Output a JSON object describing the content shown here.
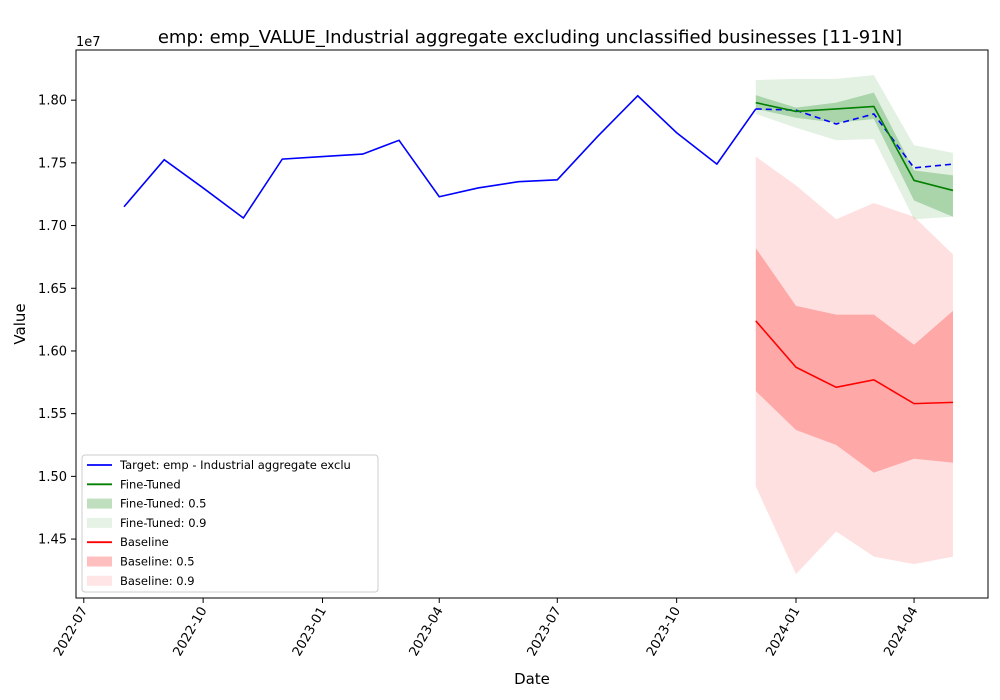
{
  "chart_data": {
    "type": "line",
    "title": "emp: emp_VALUE_Industrial aggregate excluding unclassified businesses [11-91N]",
    "xlabel": "Date",
    "ylabel": "Value",
    "y_offset_label": "1e7",
    "xlim": [
      "2022-06-25",
      "2024-05-28"
    ],
    "ylim": [
      14030000,
      18400000
    ],
    "x_ticks": [
      "2022-07-01",
      "2022-10-01",
      "2023-01-01",
      "2023-04-01",
      "2023-07-01",
      "2023-10-01",
      "2024-01-01",
      "2024-04-01"
    ],
    "x_tick_labels": [
      "2022-07",
      "2022-10",
      "2023-01",
      "2023-04",
      "2023-07",
      "2023-10",
      "2024-01",
      "2024-04"
    ],
    "y_ticks": [
      14500000,
      15000000,
      15500000,
      16000000,
      16500000,
      17000000,
      17500000,
      18000000
    ],
    "y_tick_labels": [
      "1.45",
      "1.50",
      "1.55",
      "1.60",
      "1.65",
      "1.70",
      "1.75",
      "1.80"
    ],
    "grid": false,
    "legend_position": "lower-left",
    "colors": {
      "target": "#0000ff",
      "fine_tuned": "#008000",
      "fine_tuned_band": "#008000",
      "baseline": "#ff0000",
      "baseline_band": "#ff0000"
    },
    "target": {
      "name": "Target: emp - Industrial aggregate exclu",
      "x": [
        "2022-08-01",
        "2022-09-01",
        "2022-10-01",
        "2022-11-01",
        "2022-12-01",
        "2023-01-01",
        "2023-02-01",
        "2023-03-01",
        "2023-04-01",
        "2023-05-01",
        "2023-06-01",
        "2023-07-01",
        "2023-08-01",
        "2023-09-01",
        "2023-10-01",
        "2023-11-01",
        "2023-12-01",
        "2024-01-01",
        "2024-02-01",
        "2024-03-01",
        "2024-04-01",
        "2024-05-01"
      ],
      "y": [
        17150000,
        17525000,
        17300000,
        17060000,
        17530000,
        17550000,
        17570000,
        17680000,
        17230000,
        17300000,
        17350000,
        17365000,
        17710000,
        18035000,
        17740000,
        17490000,
        17930000,
        17920000,
        17810000,
        17890000,
        17460000,
        17490000
      ],
      "solid_until_index": 16
    },
    "forecast_x": [
      "2023-12-01",
      "2024-01-01",
      "2024-02-01",
      "2024-03-01",
      "2024-04-01",
      "2024-05-01"
    ],
    "fine_tuned": {
      "name": "Fine-Tuned",
      "median": [
        17980000,
        17910000,
        17930000,
        17950000,
        17360000,
        17280000
      ],
      "band_50": {
        "name": "Fine-Tuned: 0.5",
        "low": [
          17930000,
          17860000,
          17820000,
          17850000,
          17200000,
          17070000
        ],
        "high": [
          18040000,
          17940000,
          17980000,
          18060000,
          17440000,
          17400000
        ]
      },
      "band_90": {
        "name": "Fine-Tuned: 0.9",
        "low": [
          17890000,
          17780000,
          17680000,
          17690000,
          17050000,
          17070000
        ],
        "high": [
          18160000,
          18170000,
          18170000,
          18200000,
          17640000,
          17580000
        ]
      }
    },
    "baseline": {
      "name": "Baseline",
      "median": [
        16240000,
        15870000,
        15710000,
        15770000,
        15580000,
        15590000
      ],
      "band_50": {
        "name": "Baseline: 0.5",
        "low": [
          15680000,
          15370000,
          15250000,
          15030000,
          15140000,
          15110000
        ],
        "high": [
          16820000,
          16360000,
          16290000,
          16290000,
          16050000,
          16320000
        ]
      },
      "band_90": {
        "name": "Baseline: 0.9",
        "low": [
          14920000,
          14220000,
          14560000,
          14360000,
          14300000,
          14360000
        ],
        "high": [
          17550000,
          17320000,
          17050000,
          17180000,
          17070000,
          16770000
        ]
      }
    },
    "legend": [
      {
        "label": "Target: emp - Industrial aggregate exclu",
        "kind": "line",
        "color": "#0000ff"
      },
      {
        "label": "Fine-Tuned",
        "kind": "line",
        "color": "#008000"
      },
      {
        "label": "Fine-Tuned: 0.5",
        "kind": "patch",
        "color": "#008000",
        "opacity": 0.25
      },
      {
        "label": "Fine-Tuned: 0.9",
        "kind": "patch",
        "color": "#008000",
        "opacity": 0.1
      },
      {
        "label": "Baseline",
        "kind": "line",
        "color": "#ff0000"
      },
      {
        "label": "Baseline: 0.5",
        "kind": "patch",
        "color": "#ff0000",
        "opacity": 0.25
      },
      {
        "label": "Baseline: 0.9",
        "kind": "patch",
        "color": "#ff0000",
        "opacity": 0.1
      }
    ]
  }
}
